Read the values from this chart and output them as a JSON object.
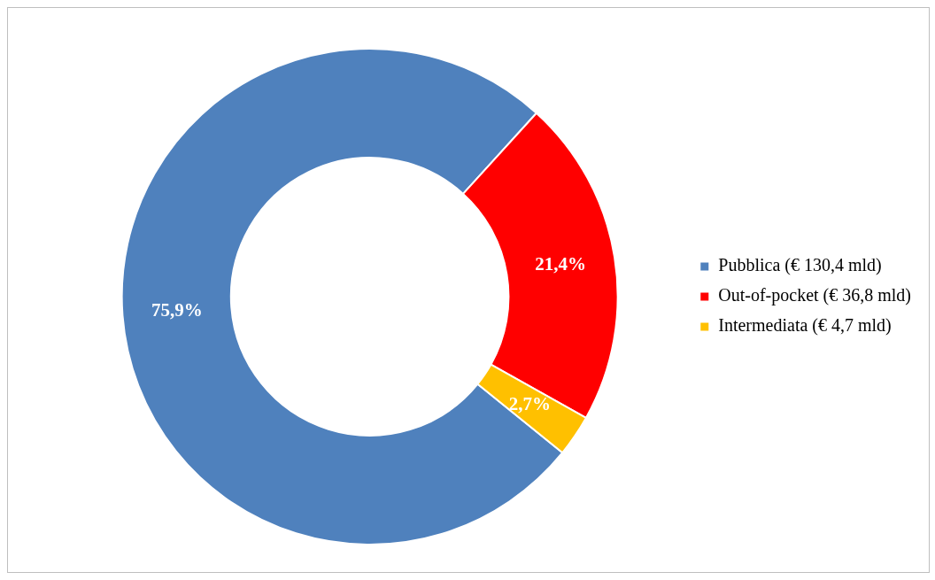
{
  "chart_data": {
    "type": "donut",
    "categories": [
      "Pubblica (€ 130,4 mld)",
      "Out-of-pocket (€ 36,8 mld)",
      "Intermediata (€ 4,7 mld)"
    ],
    "values": [
      75.9,
      21.4,
      2.7
    ],
    "colors": [
      "#4f81bd",
      "#ff0000",
      "#ffc000"
    ],
    "value_labels": [
      "75,9%",
      "21,4%",
      "2,7%"
    ],
    "legend": "right"
  }
}
